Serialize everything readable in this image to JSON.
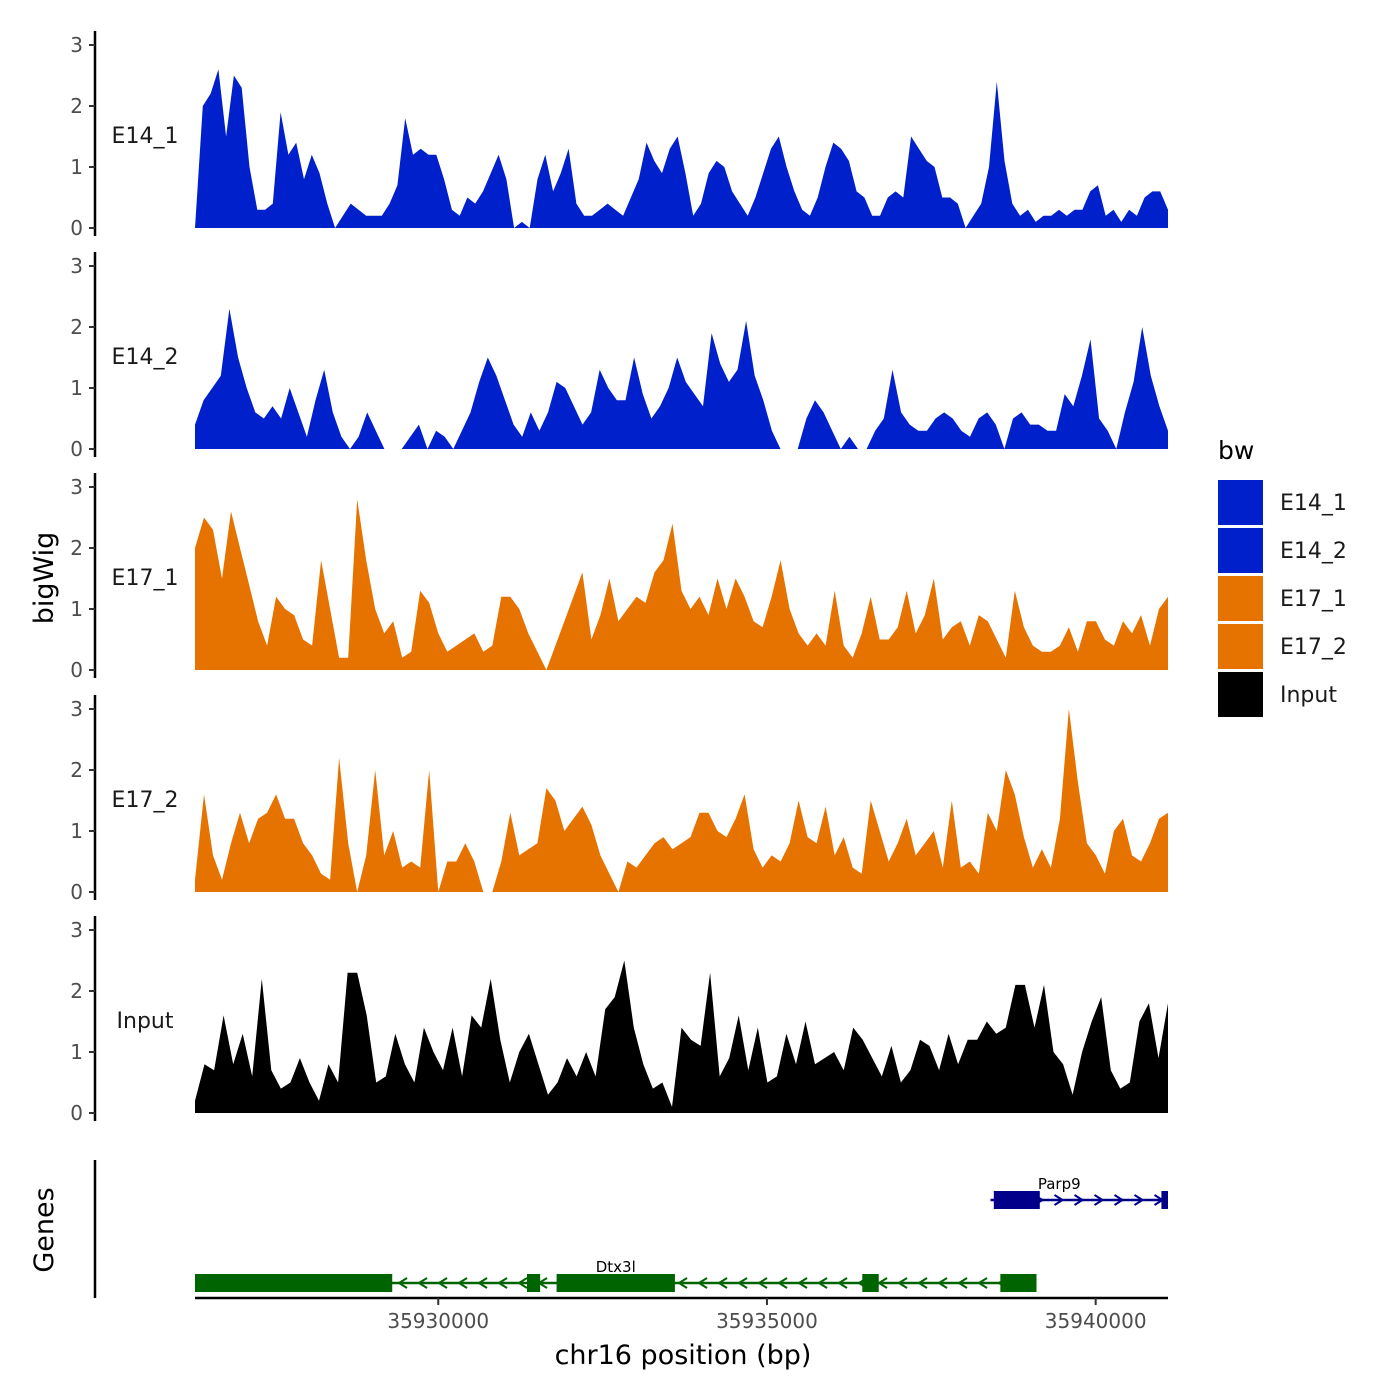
{
  "chart_data": {
    "type": "area",
    "title": "",
    "xlabel": "chr16 position (bp)",
    "ylabel": "bigWig",
    "genes_label": "Genes",
    "xlim": [
      35926300,
      35941100
    ],
    "x_ticks": [
      35930000,
      35935000,
      35940000
    ],
    "x_tick_labels": [
      "35930000",
      "35935000",
      "35940000"
    ],
    "ylim": [
      0,
      3
    ],
    "y_ticks": [
      0,
      1,
      2,
      3
    ],
    "y_tick_labels": [
      "0",
      "1",
      "2",
      "3"
    ],
    "legend": {
      "title": "bw",
      "position": "right",
      "entries": [
        {
          "label": "E14_1",
          "color": "#0020CC"
        },
        {
          "label": "E14_2",
          "color": "#0020CC"
        },
        {
          "label": "E17_1",
          "color": "#E67300"
        },
        {
          "label": "E17_2",
          "color": "#E67300"
        },
        {
          "label": "Input",
          "color": "#000000"
        }
      ]
    },
    "series": [
      {
        "name": "E14_1",
        "color": "#0020CC",
        "x_start": 35926300,
        "x_end": 35941100,
        "values": [
          0,
          2,
          2.2,
          2.6,
          1.5,
          2.5,
          2.3,
          1.0,
          0.3,
          0.3,
          0.4,
          1.9,
          1.2,
          1.4,
          0.8,
          1.2,
          0.9,
          0.4,
          0,
          0.2,
          0.4,
          0.3,
          0.2,
          0.2,
          0.2,
          0.4,
          0.7,
          1.8,
          1.2,
          1.3,
          1.2,
          1.2,
          0.8,
          0.3,
          0.2,
          0.5,
          0.4,
          0.6,
          0.9,
          1.2,
          0.8,
          0,
          0.1,
          0,
          0.8,
          1.2,
          0.6,
          0.9,
          1.3,
          0.4,
          0.2,
          0.2,
          0.3,
          0.4,
          0.3,
          0.2,
          0.5,
          0.8,
          1.4,
          1.1,
          0.9,
          1.3,
          1.5,
          0.9,
          0.2,
          0.4,
          0.9,
          1.1,
          1.0,
          0.6,
          0.4,
          0.2,
          0.5,
          0.9,
          1.3,
          1.5,
          1.0,
          0.6,
          0.3,
          0.2,
          0.5,
          1.0,
          1.4,
          1.3,
          1.1,
          0.6,
          0.5,
          0.2,
          0.2,
          0.5,
          0.6,
          0.5,
          1.5,
          1.3,
          1.1,
          1.0,
          0.5,
          0.5,
          0.4,
          0,
          0.2,
          0.4,
          1.0,
          2.4,
          1.1,
          0.4,
          0.2,
          0.3,
          0.1,
          0.2,
          0.2,
          0.3,
          0.2,
          0.3,
          0.3,
          0.6,
          0.7,
          0.2,
          0.3,
          0.1,
          0.3,
          0.2,
          0.5,
          0.6,
          0.6,
          0.3
        ]
      },
      {
        "name": "E14_2",
        "color": "#0020CC",
        "x_start": 35926300,
        "x_end": 35941100,
        "values": [
          0.4,
          0.8,
          1.0,
          1.2,
          2.3,
          1.5,
          1.0,
          0.6,
          0.5,
          0.7,
          0.5,
          1.0,
          0.6,
          0.2,
          0.8,
          1.3,
          0.6,
          0.2,
          0,
          0.2,
          0.6,
          0.3,
          0,
          0,
          0,
          0.2,
          0.4,
          0,
          0.3,
          0.2,
          0,
          0.3,
          0.6,
          1.1,
          1.5,
          1.2,
          0.8,
          0.4,
          0.2,
          0.6,
          0.3,
          0.6,
          1.1,
          1.0,
          0.7,
          0.4,
          0.6,
          1.3,
          1.0,
          0.8,
          0.8,
          1.5,
          0.9,
          0.5,
          0.7,
          1.0,
          1.5,
          1.1,
          0.9,
          0.7,
          1.9,
          1.4,
          1.1,
          1.3,
          2.1,
          1.2,
          0.8,
          0.3,
          0,
          0,
          0,
          0.5,
          0.8,
          0.6,
          0.3,
          0,
          0.2,
          0,
          0,
          0.3,
          0.5,
          1.3,
          0.6,
          0.4,
          0.3,
          0.3,
          0.5,
          0.6,
          0.5,
          0.3,
          0.2,
          0.5,
          0.6,
          0.4,
          0,
          0.5,
          0.6,
          0.4,
          0.4,
          0.3,
          0.3,
          0.9,
          0.7,
          1.2,
          1.8,
          0.5,
          0.3,
          0,
          0.6,
          1.1,
          2.0,
          1.2,
          0.7,
          0.3
        ]
      },
      {
        "name": "E17_1",
        "color": "#E67300",
        "x_start": 35926300,
        "x_end": 35941100,
        "values": [
          2,
          2.5,
          2.3,
          1.5,
          2.6,
          2.0,
          1.4,
          0.8,
          0.4,
          1.2,
          1.0,
          0.9,
          0.5,
          0.4,
          1.8,
          1.0,
          0.2,
          0.2,
          2.8,
          1.8,
          1.0,
          0.6,
          0.8,
          0.2,
          0.3,
          1.3,
          1.1,
          0.6,
          0.3,
          0.4,
          0.5,
          0.6,
          0.3,
          0.4,
          1.2,
          1.2,
          1.0,
          0.6,
          0.3,
          0,
          0.4,
          0.8,
          1.2,
          1.6,
          0.5,
          0.9,
          1.5,
          0.8,
          1.0,
          1.2,
          1.1,
          1.6,
          1.8,
          2.4,
          1.3,
          1.0,
          1.2,
          0.9,
          1.5,
          1.0,
          1.5,
          1.2,
          0.8,
          0.7,
          1.2,
          1.8,
          1.0,
          0.6,
          0.4,
          0.6,
          0.4,
          1.3,
          0.4,
          0.2,
          0.6,
          1.2,
          0.5,
          0.5,
          0.7,
          1.3,
          0.6,
          0.9,
          1.5,
          0.5,
          0.7,
          0.8,
          0.4,
          0.9,
          0.8,
          0.5,
          0.2,
          1.3,
          0.7,
          0.4,
          0.3,
          0.3,
          0.4,
          0.7,
          0.3,
          0.8,
          0.8,
          0.5,
          0.4,
          0.8,
          0.6,
          0.9,
          0.4,
          1.0,
          1.2
        ]
      },
      {
        "name": "E17_2",
        "color": "#E67300",
        "x_start": 35926300,
        "x_end": 35941100,
        "values": [
          0.2,
          1.6,
          0.6,
          0.2,
          0.8,
          1.3,
          0.8,
          1.2,
          1.3,
          1.6,
          1.2,
          1.2,
          0.8,
          0.6,
          0.3,
          0.2,
          2.2,
          0.8,
          0,
          0.6,
          2.0,
          0.6,
          1.0,
          0.4,
          0.5,
          0.4,
          2.0,
          0,
          0.5,
          0.5,
          0.8,
          0.5,
          0,
          0,
          0.5,
          1.3,
          0.6,
          0.7,
          0.8,
          1.7,
          1.5,
          1.0,
          1.2,
          1.4,
          1.1,
          0.6,
          0.3,
          0,
          0.5,
          0.4,
          0.6,
          0.8,
          0.9,
          0.7,
          0.8,
          0.9,
          1.3,
          1.3,
          1.0,
          0.9,
          1.2,
          1.6,
          0.7,
          0.4,
          0.6,
          0.5,
          0.8,
          1.5,
          0.9,
          0.8,
          1.4,
          0.6,
          0.9,
          0.4,
          0.3,
          1.5,
          1.0,
          0.5,
          0.8,
          1.2,
          0.6,
          0.8,
          1.0,
          0.4,
          1.5,
          0.4,
          0.5,
          0.3,
          1.3,
          1.0,
          2.0,
          1.6,
          0.9,
          0.4,
          0.7,
          0.4,
          1.2,
          3.0,
          1.8,
          0.8,
          0.6,
          0.3,
          1.0,
          1.2,
          0.6,
          0.5,
          0.8,
          1.2,
          1.3
        ]
      },
      {
        "name": "Input",
        "color": "#000000",
        "x_start": 35926300,
        "x_end": 35941100,
        "values": [
          0.2,
          0.8,
          0.7,
          1.6,
          0.8,
          1.3,
          0.6,
          2.2,
          0.7,
          0.4,
          0.5,
          0.9,
          0.5,
          0.2,
          0.8,
          0.5,
          2.3,
          2.3,
          1.6,
          0.5,
          0.6,
          1.3,
          0.8,
          0.5,
          1.4,
          1.0,
          0.7,
          1.4,
          0.6,
          1.6,
          1.4,
          2.2,
          1.2,
          0.5,
          1.0,
          1.3,
          0.8,
          0.3,
          0.5,
          0.9,
          0.6,
          1.0,
          0.6,
          1.7,
          1.9,
          2.5,
          1.4,
          0.8,
          0.4,
          0.5,
          0.1,
          1.4,
          1.2,
          1.1,
          2.3,
          0.6,
          0.9,
          1.6,
          0.7,
          1.4,
          0.5,
          0.6,
          1.3,
          0.8,
          1.5,
          0.8,
          0.9,
          1.0,
          0.7,
          1.4,
          1.2,
          0.9,
          0.6,
          1.1,
          0.5,
          0.7,
          1.2,
          1.1,
          0.7,
          1.3,
          0.8,
          1.2,
          1.2,
          1.5,
          1.3,
          1.4,
          2.1,
          2.1,
          1.4,
          2.1,
          1.0,
          0.8,
          0.3,
          1.0,
          1.5,
          1.9,
          0.7,
          0.4,
          0.5,
          1.5,
          1.8,
          0.9,
          1.8
        ]
      }
    ],
    "genes": [
      {
        "name": "Parp9",
        "strand": "+",
        "color": "#00008B",
        "start": 35938400,
        "end": 35941100,
        "exons": [
          [
            35938450,
            35939150
          ],
          [
            35941000,
            35941100
          ]
        ]
      },
      {
        "name": "Dtx3l",
        "strand": "-",
        "color": "#006400",
        "start": 35926300,
        "end": 35939100,
        "exons": [
          [
            35926300,
            35929300
          ],
          [
            35931350,
            35931550
          ],
          [
            35931800,
            35933600
          ],
          [
            35936450,
            35936700
          ],
          [
            35938550,
            35939100
          ]
        ]
      }
    ]
  }
}
